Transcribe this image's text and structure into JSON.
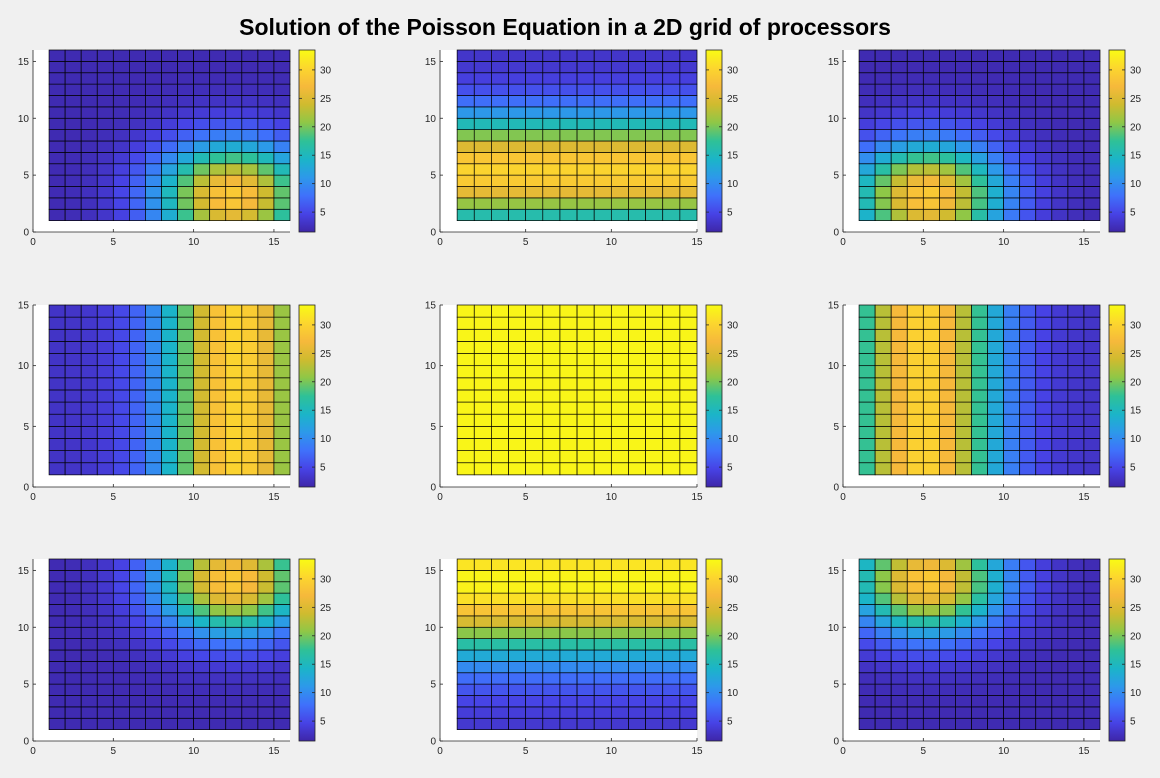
{
  "figure": {
    "title": "Solution of the Poisson Equation in a 2D grid of processors"
  },
  "colormap": {
    "name": "parula",
    "stops": [
      "#3e26a8",
      "#4743e6",
      "#3f71fb",
      "#2d99ea",
      "#1bb5c8",
      "#2fc197",
      "#8ec747",
      "#cfbb2f",
      "#f6b93b",
      "#fcd62e",
      "#f9fb14"
    ]
  },
  "chart_data": [
    {
      "type": "heatmap",
      "position": "row 1, col 1",
      "cols": 15,
      "rows": 15,
      "xlim": [
        0,
        16
      ],
      "ylim": [
        0,
        16
      ],
      "xticks": [
        "0",
        "5",
        "10",
        "15"
      ],
      "yticks": [
        "0",
        "5",
        "10",
        "15"
      ],
      "clim": [
        1.5,
        33.5
      ],
      "colorbar_ticks": [
        "5",
        "10",
        "15",
        "20",
        "25",
        "30"
      ],
      "field": "peak_near_bottom_right",
      "value_range": [
        2,
        29
      ]
    },
    {
      "type": "heatmap",
      "position": "row 1, col 2",
      "cols": 14,
      "rows": 15,
      "xlim": [
        0,
        15
      ],
      "ylim": [
        0,
        16
      ],
      "xticks": [
        "0",
        "5",
        "10",
        "15"
      ],
      "yticks": [
        "0",
        "5",
        "10",
        "15"
      ],
      "clim": [
        1.5,
        33.5
      ],
      "colorbar_ticks": [
        "5",
        "10",
        "15",
        "20",
        "25",
        "30"
      ],
      "field": "horizontal_band_peak_near_bottom",
      "value_range": [
        3,
        30
      ]
    },
    {
      "type": "heatmap",
      "position": "row 1, col 3",
      "cols": 15,
      "rows": 15,
      "xlim": [
        0,
        16
      ],
      "ylim": [
        0,
        16
      ],
      "xticks": [
        "0",
        "5",
        "10",
        "15"
      ],
      "yticks": [
        "0",
        "5",
        "10",
        "15"
      ],
      "clim": [
        1.5,
        33.5
      ],
      "colorbar_ticks": [
        "5",
        "10",
        "15",
        "20",
        "25",
        "30"
      ],
      "field": "peak_near_bottom_left",
      "value_range": [
        2,
        29
      ]
    },
    {
      "type": "heatmap",
      "position": "row 2, col 1",
      "cols": 15,
      "rows": 14,
      "xlim": [
        0,
        16
      ],
      "ylim": [
        0,
        15
      ],
      "xticks": [
        "0",
        "5",
        "10",
        "15"
      ],
      "yticks": [
        "0",
        "5",
        "10",
        "15"
      ],
      "clim": [
        1.5,
        33.5
      ],
      "colorbar_ticks": [
        "5",
        "10",
        "15",
        "20",
        "25",
        "30"
      ],
      "field": "vertical_band_peak_near_right",
      "value_range": [
        3,
        30
      ]
    },
    {
      "type": "heatmap",
      "position": "row 2, col 2",
      "cols": 14,
      "rows": 14,
      "xlim": [
        0,
        15
      ],
      "ylim": [
        0,
        15
      ],
      "xticks": [
        "0",
        "5",
        "10",
        "15"
      ],
      "yticks": [
        "0",
        "5",
        "10",
        "15"
      ],
      "clim": [
        1.5,
        33.5
      ],
      "colorbar_ticks": [
        "5",
        "10",
        "15",
        "20",
        "25",
        "30"
      ],
      "field": "uniform_maximum",
      "value_range": [
        33,
        33
      ]
    },
    {
      "type": "heatmap",
      "position": "row 2, col 3",
      "cols": 15,
      "rows": 14,
      "xlim": [
        0,
        16
      ],
      "ylim": [
        0,
        15
      ],
      "xticks": [
        "0",
        "5",
        "10",
        "15"
      ],
      "yticks": [
        "0",
        "5",
        "10",
        "15"
      ],
      "clim": [
        1.5,
        33.5
      ],
      "colorbar_ticks": [
        "5",
        "10",
        "15",
        "20",
        "25",
        "30"
      ],
      "field": "vertical_band_peak_near_left",
      "value_range": [
        3,
        30
      ]
    },
    {
      "type": "heatmap",
      "position": "row 3, col 1",
      "cols": 15,
      "rows": 15,
      "xlim": [
        0,
        16
      ],
      "ylim": [
        0,
        16
      ],
      "xticks": [
        "0",
        "5",
        "10",
        "15"
      ],
      "yticks": [
        "0",
        "5",
        "10",
        "15"
      ],
      "clim": [
        1.5,
        33.5
      ],
      "colorbar_ticks": [
        "5",
        "10",
        "15",
        "20",
        "25",
        "30"
      ],
      "field": "peak_near_top_right",
      "value_range": [
        2,
        29
      ]
    },
    {
      "type": "heatmap",
      "position": "row 3, col 2",
      "cols": 14,
      "rows": 15,
      "xlim": [
        0,
        15
      ],
      "ylim": [
        0,
        16
      ],
      "xticks": [
        "0",
        "5",
        "10",
        "15"
      ],
      "yticks": [
        "0",
        "5",
        "10",
        "15"
      ],
      "clim": [
        1.5,
        33.5
      ],
      "colorbar_ticks": [
        "5",
        "10",
        "15",
        "20",
        "25",
        "30"
      ],
      "field": "horizontal_band_peak_near_top",
      "value_range": [
        3,
        33
      ]
    },
    {
      "type": "heatmap",
      "position": "row 3, col 3",
      "cols": 15,
      "rows": 15,
      "xlim": [
        0,
        16
      ],
      "ylim": [
        0,
        16
      ],
      "xticks": [
        "0",
        "5",
        "10",
        "15"
      ],
      "yticks": [
        "0",
        "5",
        "10",
        "15"
      ],
      "clim": [
        1.5,
        33.5
      ],
      "colorbar_ticks": [
        "5",
        "10",
        "15",
        "20",
        "25",
        "30"
      ],
      "field": "peak_near_top_left",
      "value_range": [
        2,
        29
      ]
    }
  ]
}
